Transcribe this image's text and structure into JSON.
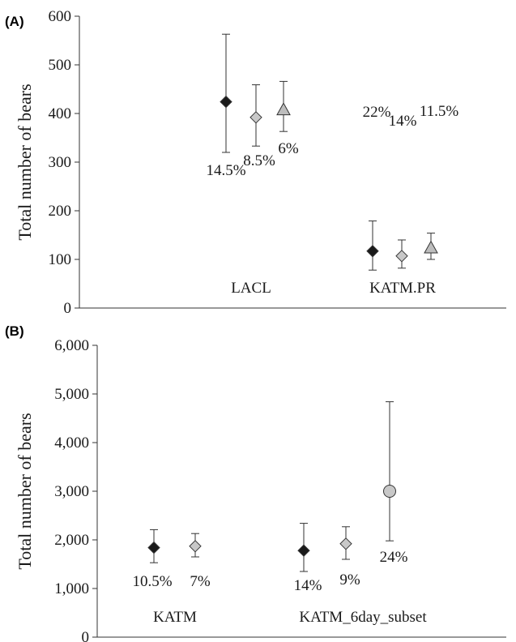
{
  "chart_data": [
    {
      "panel_label": "(A)",
      "type": "scatter",
      "ylabel": "Total number of bears",
      "ylim": [
        0,
        600
      ],
      "yticks": [
        "0",
        "100",
        "200",
        "300",
        "400",
        "500",
        "600"
      ],
      "categories": [
        "LACL",
        "KATM.PR"
      ],
      "points": [
        {
          "category": "LACL",
          "marker": "diamond",
          "color": "#1a1a1a",
          "y": 424,
          "lower": 320,
          "upper": 563,
          "label": "14.5%"
        },
        {
          "category": "LACL",
          "marker": "diamond",
          "color": "#c8c8c8",
          "y": 392,
          "lower": 333,
          "upper": 459,
          "label": "8.5%"
        },
        {
          "category": "LACL",
          "marker": "triangle",
          "color": "#bdbdbd",
          "y": 408,
          "lower": 363,
          "upper": 466,
          "label": "6%"
        },
        {
          "category": "KATM.PR",
          "marker": "diamond",
          "color": "#1a1a1a",
          "y": 117,
          "lower": 78,
          "upper": 179,
          "label": "22%"
        },
        {
          "category": "KATM.PR",
          "marker": "diamond",
          "color": "#c8c8c8",
          "y": 107,
          "lower": 82,
          "upper": 140,
          "label": "14%"
        },
        {
          "category": "KATM.PR",
          "marker": "triangle",
          "color": "#bdbdbd",
          "y": 124,
          "lower": 100,
          "upper": 154,
          "label": "11.5%"
        }
      ]
    },
    {
      "panel_label": "(B)",
      "type": "scatter",
      "ylabel": "Total number of bears",
      "ylim": [
        0,
        6000
      ],
      "yticks": [
        "0",
        "1,000",
        "2,000",
        "3,000",
        "4,000",
        "5,000",
        "6,000"
      ],
      "categories": [
        "KATM",
        "KATM_6day_subset"
      ],
      "points": [
        {
          "category": "KATM",
          "marker": "diamond",
          "color": "#1a1a1a",
          "y": 1840,
          "lower": 1530,
          "upper": 2210,
          "label": "10.5%"
        },
        {
          "category": "KATM",
          "marker": "diamond",
          "color": "#c8c8c8",
          "y": 1870,
          "lower": 1650,
          "upper": 2130,
          "label": "7%"
        },
        {
          "category": "KATM_6day_subset",
          "marker": "diamond",
          "color": "#1a1a1a",
          "y": 1780,
          "lower": 1350,
          "upper": 2340,
          "label": "14%"
        },
        {
          "category": "KATM_6day_subset",
          "marker": "diamond",
          "color": "#c8c8c8",
          "y": 1920,
          "lower": 1600,
          "upper": 2270,
          "label": "9%"
        },
        {
          "category": "KATM_6day_subset",
          "marker": "circle",
          "color": "#c8c8c8",
          "y": 3000,
          "lower": 1980,
          "upper": 4840,
          "label": "24%"
        }
      ]
    }
  ]
}
